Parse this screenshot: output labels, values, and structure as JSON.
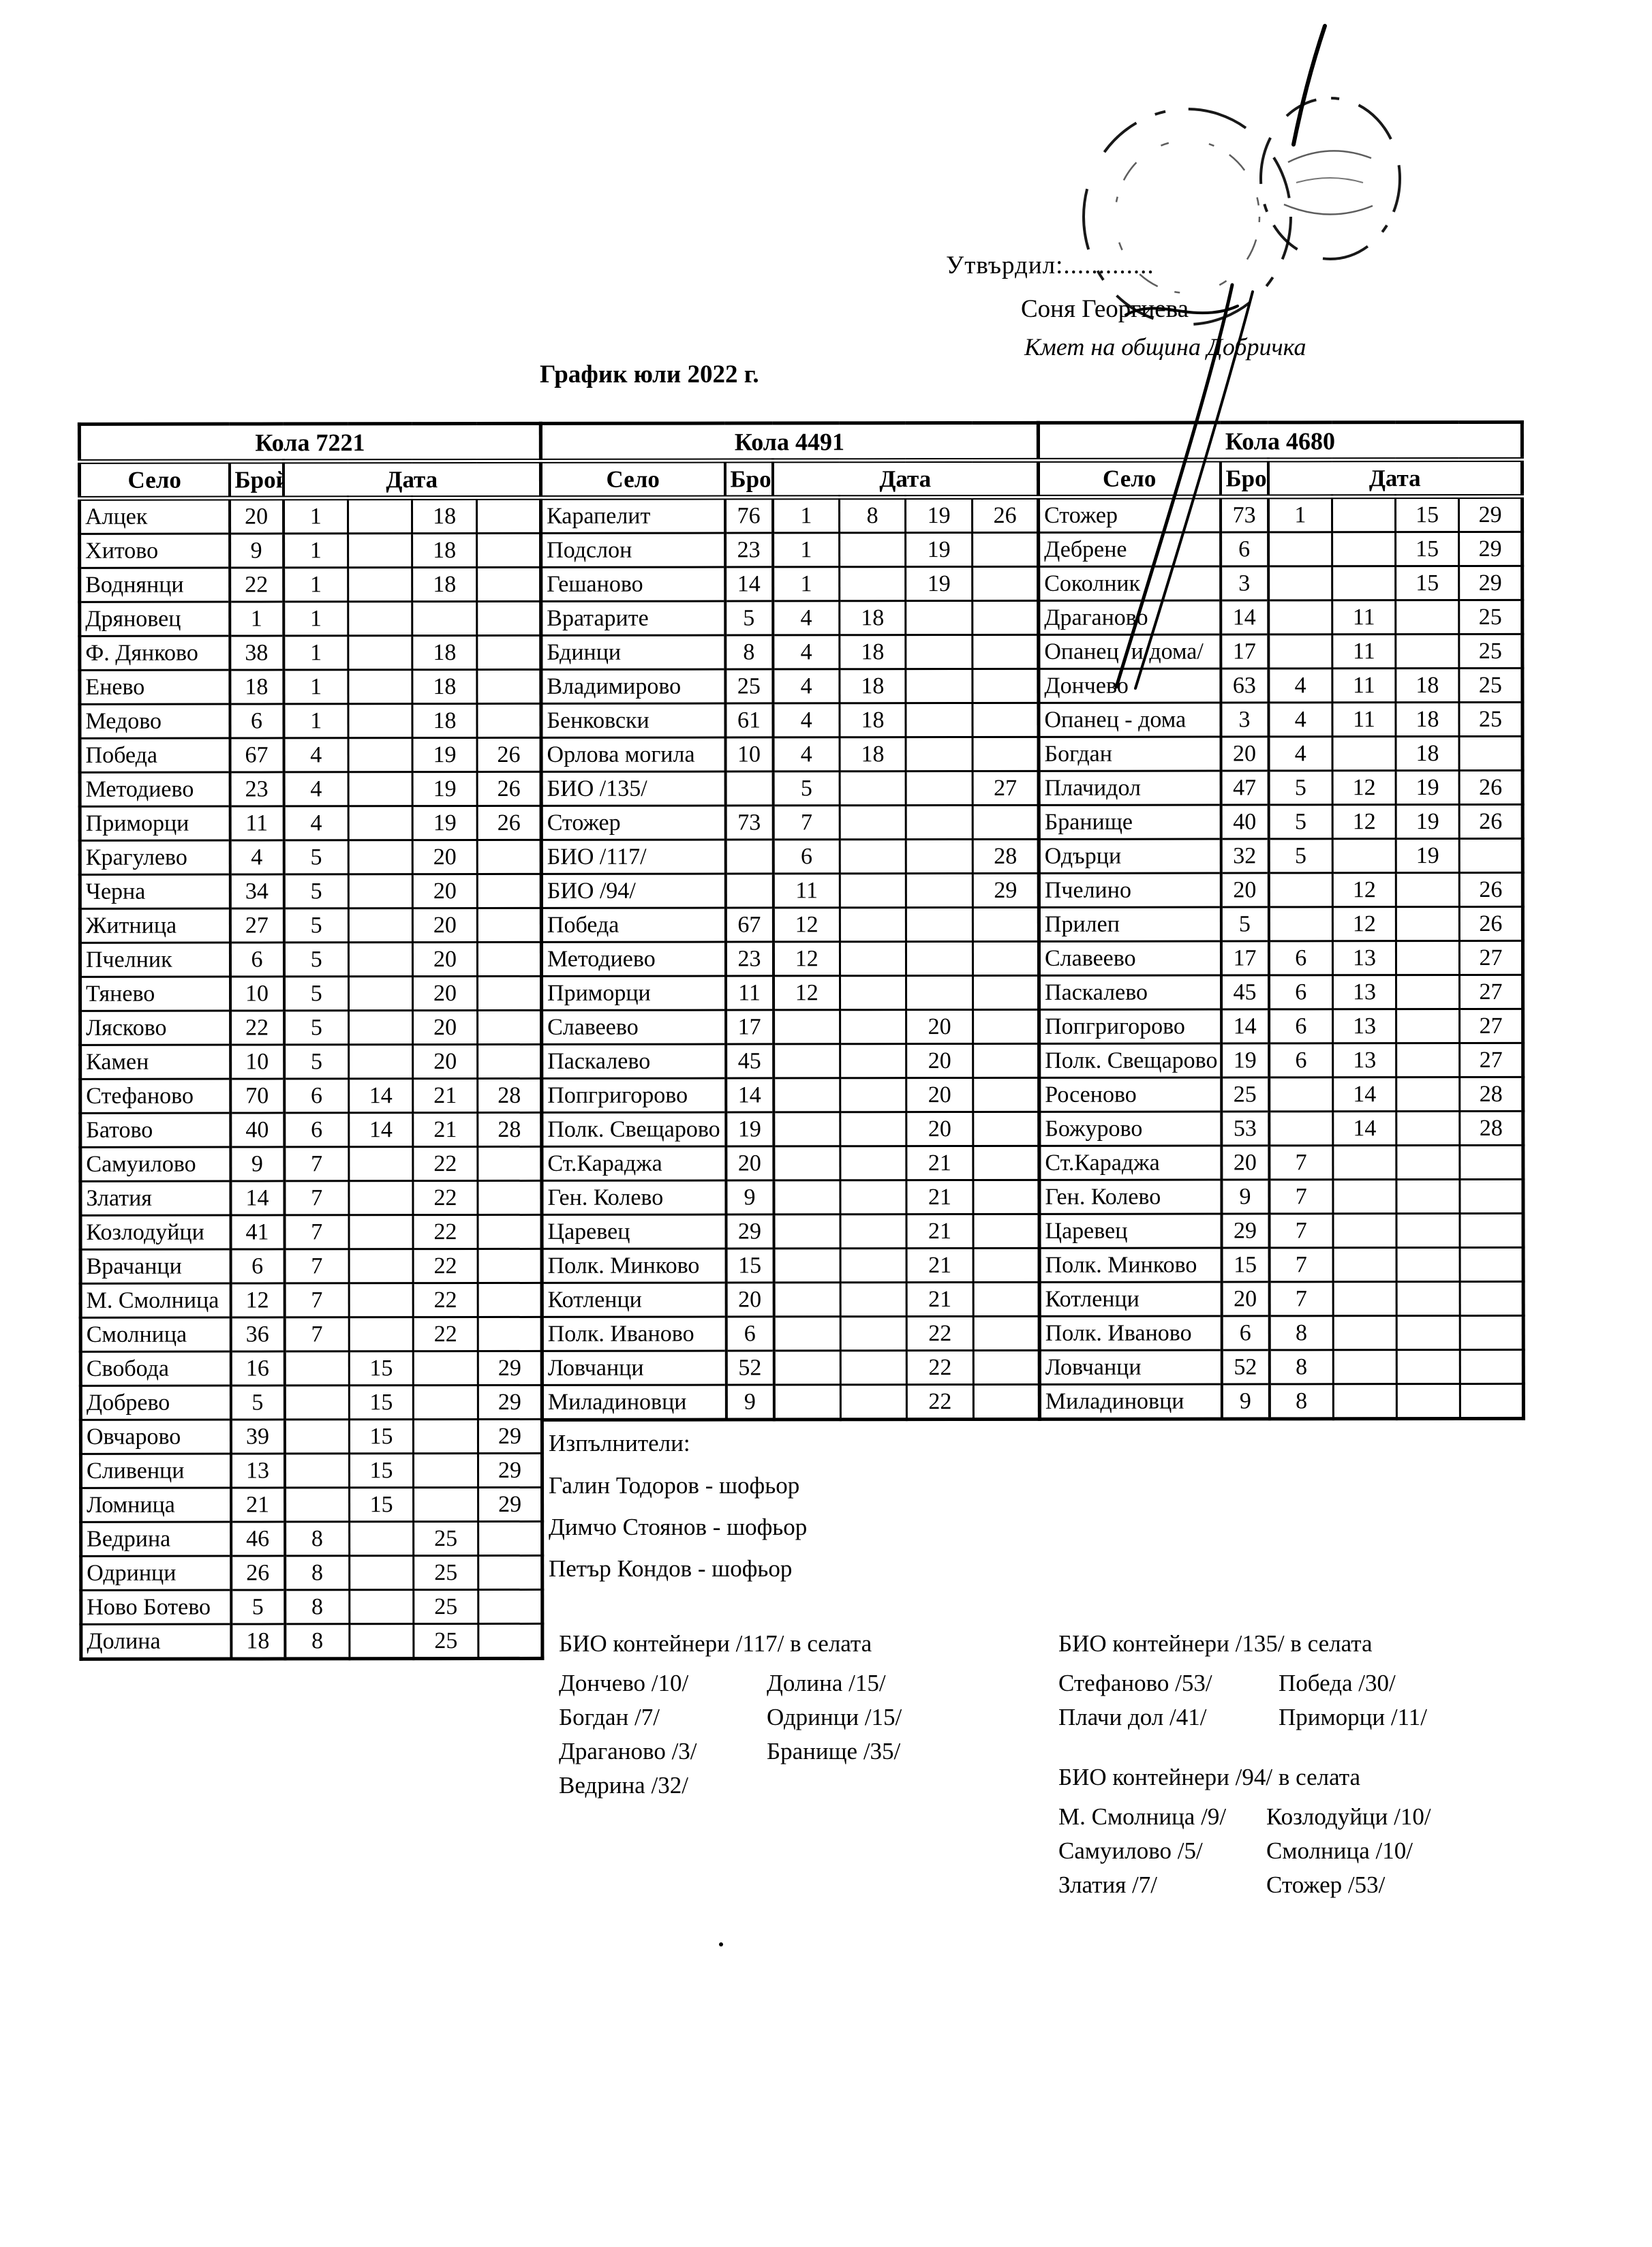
{
  "header": {
    "approved_label": "Утвърдил:.............",
    "approver_name": "Соня Георгиева",
    "approver_title": "Кмет  на община Добричка"
  },
  "title": "График юли 2022 г.",
  "columns": {
    "village": "Село",
    "count": "Брой",
    "date": "Дата"
  },
  "tables": [
    {
      "name": "Кола 7221",
      "rows": [
        [
          "Алцек",
          "20",
          "1",
          "",
          "18",
          ""
        ],
        [
          "Хитово",
          "9",
          "1",
          "",
          "18",
          ""
        ],
        [
          "Воднянци",
          "22",
          "1",
          "",
          "18",
          ""
        ],
        [
          "Дряновец",
          "1",
          "1",
          "",
          "",
          ""
        ],
        [
          "Ф. Дянково",
          "38",
          "1",
          "",
          "18",
          ""
        ],
        [
          "Енево",
          "18",
          "1",
          "",
          "18",
          ""
        ],
        [
          "Медово",
          "6",
          "1",
          "",
          "18",
          ""
        ],
        [
          "Победа",
          "67",
          "4",
          "",
          "19",
          "26"
        ],
        [
          "Методиево",
          "23",
          "4",
          "",
          "19",
          "26"
        ],
        [
          "Приморци",
          "11",
          "4",
          "",
          "19",
          "26"
        ],
        [
          "Крагулево",
          "4",
          "5",
          "",
          "20",
          ""
        ],
        [
          "Черна",
          "34",
          "5",
          "",
          "20",
          ""
        ],
        [
          "Житница",
          "27",
          "5",
          "",
          "20",
          ""
        ],
        [
          "Пчелник",
          "6",
          "5",
          "",
          "20",
          ""
        ],
        [
          "Тянево",
          "10",
          "5",
          "",
          "20",
          ""
        ],
        [
          "Лясково",
          "22",
          "5",
          "",
          "20",
          ""
        ],
        [
          "Камен",
          "10",
          "5",
          "",
          "20",
          ""
        ],
        [
          "Стефаново",
          "70",
          "6",
          "14",
          "21",
          "28"
        ],
        [
          "Батово",
          "40",
          "6",
          "14",
          "21",
          "28"
        ],
        [
          "Самуилово",
          "9",
          "7",
          "",
          "22",
          ""
        ],
        [
          "Златия",
          "14",
          "7",
          "",
          "22",
          ""
        ],
        [
          "Козлодуйци",
          "41",
          "7",
          "",
          "22",
          ""
        ],
        [
          "Врачанци",
          "6",
          "7",
          "",
          "22",
          ""
        ],
        [
          "М. Смолница",
          "12",
          "7",
          "",
          "22",
          ""
        ],
        [
          "Смолница",
          "36",
          "7",
          "",
          "22",
          ""
        ],
        [
          "Свобода",
          "16",
          "",
          "15",
          "",
          "29"
        ],
        [
          "Добрево",
          "5",
          "",
          "15",
          "",
          "29"
        ],
        [
          "Овчарово",
          "39",
          "",
          "15",
          "",
          "29"
        ],
        [
          "Сливенци",
          "13",
          "",
          "15",
          "",
          "29"
        ],
        [
          "Ломница",
          "21",
          "",
          "15",
          "",
          "29"
        ],
        [
          "Ведрина",
          "46",
          "8",
          "",
          "25",
          ""
        ],
        [
          "Одринци",
          "26",
          "8",
          "",
          "25",
          ""
        ],
        [
          "Ново Ботево",
          "5",
          "8",
          "",
          "25",
          ""
        ],
        [
          "Долина",
          "18",
          "8",
          "",
          "25",
          ""
        ]
      ]
    },
    {
      "name": "Кола 4491",
      "rows": [
        [
          "Карапелит",
          "76",
          "1",
          "8",
          "19",
          "26"
        ],
        [
          "Подслон",
          "23",
          "1",
          "",
          "19",
          ""
        ],
        [
          "Гешаново",
          "14",
          "1",
          "",
          "19",
          ""
        ],
        [
          "Вратарите",
          "5",
          "4",
          "18",
          "",
          ""
        ],
        [
          "Бдинци",
          "8",
          "4",
          "18",
          "",
          ""
        ],
        [
          "Владимирово",
          "25",
          "4",
          "18",
          "",
          ""
        ],
        [
          "Бенковски",
          "61",
          "4",
          "18",
          "",
          ""
        ],
        [
          "Орлова могила",
          "10",
          "4",
          "18",
          "",
          ""
        ],
        [
          "БИО /135/",
          "",
          "5",
          "",
          "",
          "27"
        ],
        [
          "Стожер",
          "73",
          "7",
          "",
          "",
          ""
        ],
        [
          "БИО /117/",
          "",
          "6",
          "",
          "",
          "28"
        ],
        [
          "БИО /94/",
          "",
          "11",
          "",
          "",
          "29"
        ],
        [
          "Победа",
          "67",
          "12",
          "",
          "",
          ""
        ],
        [
          "Методиево",
          "23",
          "12",
          "",
          "",
          ""
        ],
        [
          "Приморци",
          "11",
          "12",
          "",
          "",
          ""
        ],
        [
          "Славеево",
          "17",
          "",
          "",
          "20",
          ""
        ],
        [
          "Паскалево",
          "45",
          "",
          "",
          "20",
          ""
        ],
        [
          "Попгригорово",
          "14",
          "",
          "",
          "20",
          ""
        ],
        [
          "Полк. Свещарово",
          "19",
          "",
          "",
          "20",
          ""
        ],
        [
          "Ст.Караджа",
          "20",
          "",
          "",
          "21",
          ""
        ],
        [
          "Ген. Колево",
          "9",
          "",
          "",
          "21",
          ""
        ],
        [
          "Царевец",
          "29",
          "",
          "",
          "21",
          ""
        ],
        [
          "Полк. Минково",
          "15",
          "",
          "",
          "21",
          ""
        ],
        [
          "Котленци",
          "20",
          "",
          "",
          "21",
          ""
        ],
        [
          "Полк. Иваново",
          "6",
          "",
          "",
          "22",
          ""
        ],
        [
          "Ловчанци",
          "52",
          "",
          "",
          "22",
          ""
        ],
        [
          "Миладиновци",
          "9",
          "",
          "",
          "22",
          ""
        ]
      ]
    },
    {
      "name": "Кола 4680",
      "rows": [
        [
          "Стожер",
          "73",
          "1",
          "",
          "15",
          "29"
        ],
        [
          "Дебрене",
          "6",
          "",
          "",
          "15",
          "29"
        ],
        [
          "Соколник",
          "3",
          "",
          "",
          "15",
          "29"
        ],
        [
          "Драганово",
          "14",
          "",
          "11",
          "",
          "25"
        ],
        [
          "Опанец /и дома/",
          "17",
          "",
          "11",
          "",
          "25"
        ],
        [
          "Дончево",
          "63",
          "4",
          "11",
          "18",
          "25"
        ],
        [
          "Опанец - дома",
          "3",
          "4",
          "11",
          "18",
          "25"
        ],
        [
          "Богдан",
          "20",
          "4",
          "",
          "18",
          ""
        ],
        [
          "Плачидол",
          "47",
          "5",
          "12",
          "19",
          "26"
        ],
        [
          "Бранище",
          "40",
          "5",
          "12",
          "19",
          "26"
        ],
        [
          "Одърци",
          "32",
          "5",
          "",
          "19",
          ""
        ],
        [
          "Пчелино",
          "20",
          "",
          "12",
          "",
          "26"
        ],
        [
          "Прилеп",
          "5",
          "",
          "12",
          "",
          "26"
        ],
        [
          "Славеево",
          "17",
          "6",
          "13",
          "",
          "27"
        ],
        [
          "Паскалево",
          "45",
          "6",
          "13",
          "",
          "27"
        ],
        [
          "Попгригорово",
          "14",
          "6",
          "13",
          "",
          "27"
        ],
        [
          "Полк. Свещарово",
          "19",
          "6",
          "13",
          "",
          "27"
        ],
        [
          "Росеново",
          "25",
          "",
          "14",
          "",
          "28"
        ],
        [
          "Божурово",
          "53",
          "",
          "14",
          "",
          "28"
        ],
        [
          "Ст.Караджа",
          "20",
          "7",
          "",
          "",
          ""
        ],
        [
          "Ген. Колево",
          "9",
          "7",
          "",
          "",
          ""
        ],
        [
          "Царевец",
          "29",
          "7",
          "",
          "",
          ""
        ],
        [
          "Полк. Минково",
          "15",
          "7",
          "",
          "",
          ""
        ],
        [
          "Котленци",
          "20",
          "7",
          "",
          "",
          ""
        ],
        [
          "Полк. Иваново",
          "6",
          "8",
          "",
          "",
          ""
        ],
        [
          "Ловчанци",
          "52",
          "8",
          "",
          "",
          ""
        ],
        [
          "Миладиновци",
          "9",
          "8",
          "",
          "",
          ""
        ]
      ]
    }
  ],
  "executors": {
    "heading": "Изпълнители:",
    "items": [
      "Галин Тодоров - шофьор",
      "Димчо Стоянов - шофьор",
      "Петър Кондов - шофьор"
    ]
  },
  "bio_sections": [
    {
      "heading": "БИО контейнери /117/ в селата",
      "columns": [
        [
          "Дончево /10/",
          "Богдан /7/",
          "Драганово /3/",
          "Ведрина /32/"
        ],
        [
          "Долина /15/",
          "Одринци /15/",
          "Бранище /35/"
        ]
      ]
    },
    {
      "heading": "БИО контейнери /135/ в селата",
      "columns": [
        [
          "Стефаново /53/",
          "Плачи дол /41/"
        ],
        [
          "Победа /30/",
          "Приморци /11/"
        ]
      ]
    },
    {
      "heading": "БИО контейнери /94/ в селата",
      "columns": [
        [
          "М. Смолница /9/",
          "Самуилово /5/",
          "Златия /7/"
        ],
        [
          "Козлодуйци /10/",
          "Смолница /10/",
          "Стожер /53/"
        ]
      ]
    }
  ]
}
